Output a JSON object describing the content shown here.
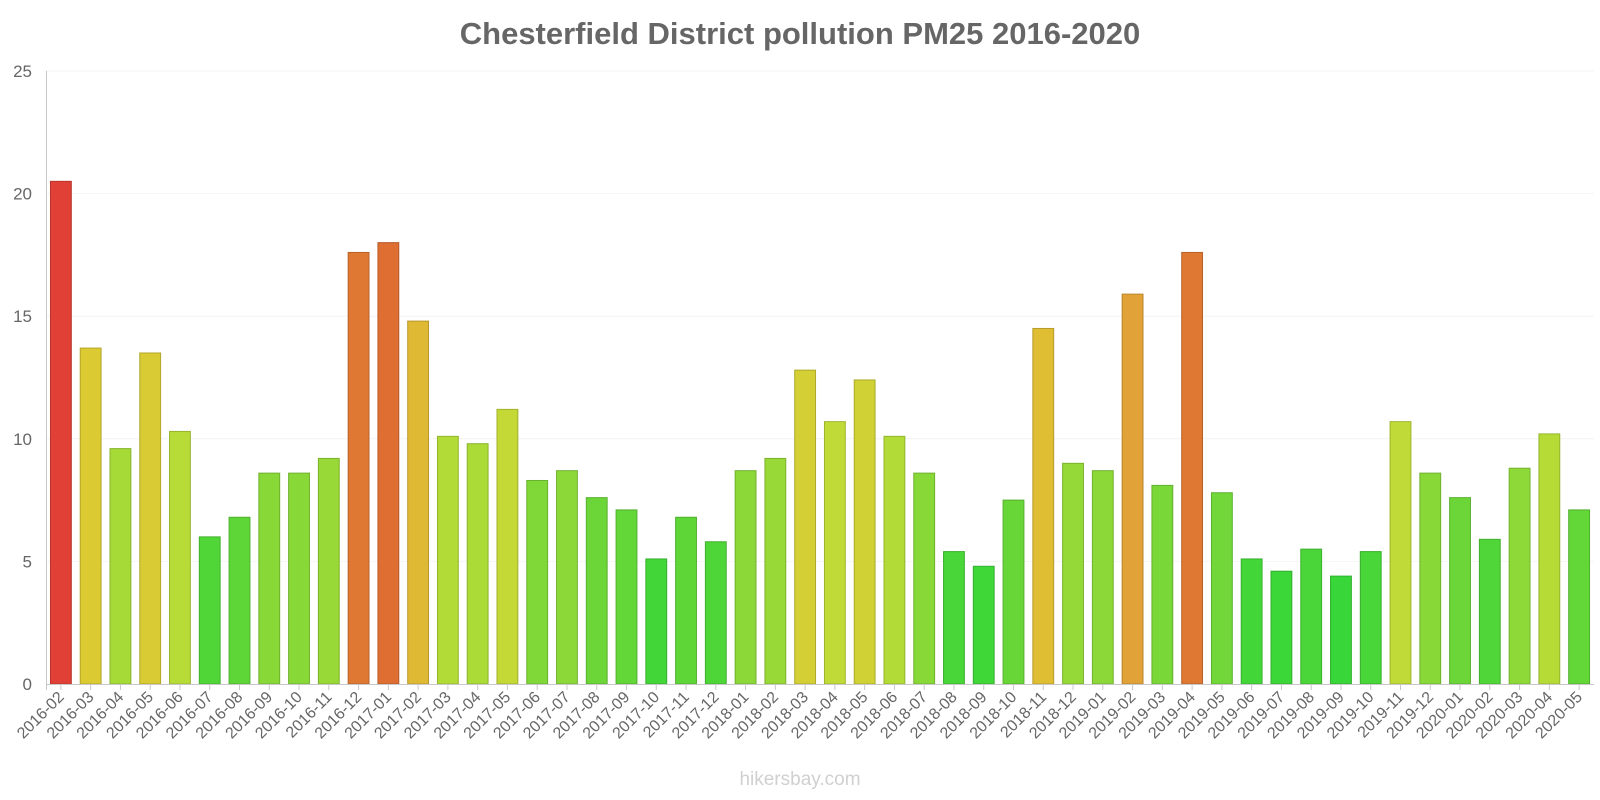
{
  "chart_data": {
    "type": "bar",
    "title": "Chesterfield District pollution PM25 2016-2020",
    "xlabel": "",
    "ylabel": "",
    "ylim": [
      0,
      25
    ],
    "yticks": [
      0,
      5,
      10,
      15,
      20,
      25
    ],
    "grid": true,
    "categories": [
      "2016-02",
      "2016-03",
      "2016-04",
      "2016-05",
      "2016-06",
      "2016-07",
      "2016-08",
      "2016-09",
      "2016-10",
      "2016-11",
      "2016-12",
      "2017-01",
      "2017-02",
      "2017-03",
      "2017-04",
      "2017-05",
      "2017-06",
      "2017-07",
      "2017-08",
      "2017-09",
      "2017-10",
      "2017-11",
      "2017-12",
      "2018-01",
      "2018-02",
      "2018-03",
      "2018-04",
      "2018-05",
      "2018-06",
      "2018-07",
      "2018-08",
      "2018-09",
      "2018-10",
      "2018-11",
      "2018-12",
      "2019-01",
      "2019-02",
      "2019-03",
      "2019-04",
      "2019-05",
      "2019-06",
      "2019-07",
      "2019-08",
      "2019-09",
      "2019-10",
      "2019-11",
      "2019-12",
      "2020-01",
      "2020-02",
      "2020-03",
      "2020-04",
      "2020-05"
    ],
    "values": [
      20.5,
      13.7,
      9.6,
      13.5,
      10.3,
      6.0,
      6.8,
      8.6,
      8.6,
      9.2,
      17.6,
      18.0,
      14.8,
      10.1,
      9.8,
      11.2,
      8.3,
      8.7,
      7.6,
      7.1,
      5.1,
      6.8,
      5.8,
      8.7,
      9.2,
      12.8,
      10.7,
      12.4,
      10.1,
      8.6,
      5.4,
      4.8,
      7.5,
      14.5,
      9.0,
      8.7,
      15.9,
      8.1,
      17.6,
      7.8,
      5.1,
      4.6,
      5.5,
      4.4,
      5.4,
      10.7,
      8.6,
      7.6,
      5.9,
      8.8,
      10.2,
      7.1
    ]
  },
  "watermark": "hikersbay.com",
  "colors": {
    "axis": "#c8c8c8",
    "grid": "#f4f4f4",
    "text": "#666666"
  }
}
